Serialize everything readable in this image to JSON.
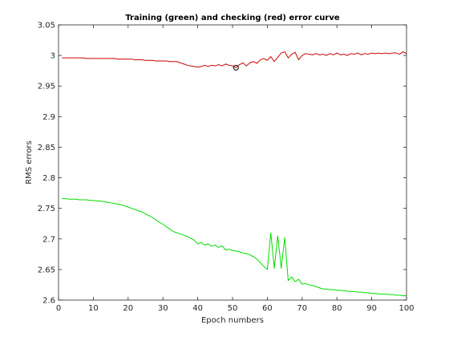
{
  "chart_data": {
    "type": "line",
    "title": "Training (green) and checking (red) error curve",
    "xlabel": "Epoch numbers",
    "ylabel": "RMS errors",
    "xlim": [
      0,
      100
    ],
    "ylim": [
      2.6,
      3.05
    ],
    "xticks": [
      0,
      10,
      20,
      30,
      40,
      50,
      60,
      70,
      80,
      90,
      100
    ],
    "xtick_labels": [
      "0",
      "10",
      "20",
      "30",
      "40",
      "50",
      "60",
      "70",
      "80",
      "90",
      "100"
    ],
    "yticks": [
      2.6,
      2.65,
      2.7,
      2.75,
      2.8,
      2.85,
      2.9,
      2.95,
      3.0,
      3.05
    ],
    "ytick_labels": [
      "2.6",
      "2.65",
      "2.7",
      "2.75",
      "2.8",
      "2.85",
      "2.9",
      "2.95",
      "3",
      "3.05"
    ],
    "grid": false,
    "series": [
      {
        "color": "#00dd00",
        "x": [
          1,
          2,
          3,
          4,
          5,
          6,
          7,
          8,
          9,
          10,
          11,
          12,
          13,
          14,
          15,
          16,
          17,
          18,
          19,
          20,
          21,
          22,
          23,
          24,
          25,
          26,
          27,
          28,
          29,
          30,
          31,
          32,
          33,
          34,
          35,
          36,
          37,
          38,
          39,
          40,
          41,
          42,
          43,
          44,
          45,
          46,
          47,
          48,
          49,
          50,
          51,
          52,
          53,
          54,
          55,
          56,
          57,
          58,
          59,
          60,
          61,
          62,
          63,
          64,
          65,
          66,
          67,
          68,
          69,
          70,
          71,
          72,
          73,
          74,
          75,
          76,
          77,
          78,
          79,
          80,
          81,
          82,
          83,
          84,
          85,
          86,
          87,
          88,
          89,
          90,
          91,
          92,
          93,
          94,
          95,
          96,
          97,
          98,
          99,
          100
        ],
        "y": [
          2.766,
          2.766,
          2.765,
          2.765,
          2.765,
          2.764,
          2.764,
          2.764,
          2.763,
          2.763,
          2.762,
          2.762,
          2.761,
          2.76,
          2.759,
          2.758,
          2.757,
          2.756,
          2.754,
          2.752,
          2.75,
          2.748,
          2.746,
          2.744,
          2.741,
          2.738,
          2.735,
          2.731,
          2.727,
          2.724,
          2.72,
          2.716,
          2.712,
          2.71,
          2.708,
          2.706,
          2.704,
          2.701,
          2.698,
          2.692,
          2.694,
          2.69,
          2.692,
          2.688,
          2.69,
          2.686,
          2.689,
          2.682,
          2.683,
          2.681,
          2.68,
          2.679,
          2.677,
          2.676,
          2.674,
          2.671,
          2.667,
          2.661,
          2.655,
          2.65,
          2.71,
          2.652,
          2.705,
          2.652,
          2.702,
          2.632,
          2.638,
          2.63,
          2.634,
          2.626,
          2.627,
          2.625,
          2.624,
          2.622,
          2.62,
          2.618,
          2.618,
          2.617,
          2.617,
          2.616,
          2.616,
          2.615,
          2.615,
          2.614,
          2.614,
          2.613,
          2.613,
          2.612,
          2.612,
          2.611,
          2.611,
          2.61,
          2.61,
          2.61,
          2.609,
          2.609,
          2.608,
          2.608,
          2.607,
          2.607
        ]
      },
      {
        "color": "#cc0000",
        "x": [
          1,
          2,
          3,
          4,
          5,
          6,
          7,
          8,
          9,
          10,
          11,
          12,
          13,
          14,
          15,
          16,
          17,
          18,
          19,
          20,
          21,
          22,
          23,
          24,
          25,
          26,
          27,
          28,
          29,
          30,
          31,
          32,
          33,
          34,
          35,
          36,
          37,
          38,
          39,
          40,
          41,
          42,
          43,
          44,
          45,
          46,
          47,
          48,
          49,
          50,
          51,
          52,
          53,
          54,
          55,
          56,
          57,
          58,
          59,
          60,
          61,
          62,
          63,
          64,
          65,
          66,
          67,
          68,
          69,
          70,
          71,
          72,
          73,
          74,
          75,
          76,
          77,
          78,
          79,
          80,
          81,
          82,
          83,
          84,
          85,
          86,
          87,
          88,
          89,
          90,
          91,
          92,
          93,
          94,
          95,
          96,
          97,
          98,
          99,
          100
        ],
        "y": [
          2.996,
          2.996,
          2.996,
          2.996,
          2.996,
          2.996,
          2.996,
          2.995,
          2.995,
          2.995,
          2.995,
          2.995,
          2.995,
          2.995,
          2.995,
          2.995,
          2.994,
          2.994,
          2.994,
          2.994,
          2.994,
          2.993,
          2.993,
          2.993,
          2.992,
          2.992,
          2.992,
          2.991,
          2.991,
          2.991,
          2.991,
          2.99,
          2.99,
          2.99,
          2.988,
          2.986,
          2.984,
          2.983,
          2.982,
          2.981,
          2.982,
          2.984,
          2.982,
          2.984,
          2.983,
          2.985,
          2.983,
          2.986,
          2.984,
          2.983,
          2.98,
          2.985,
          2.988,
          2.983,
          2.988,
          2.99,
          2.987,
          2.993,
          2.995,
          2.992,
          2.998,
          2.99,
          2.997,
          3.004,
          3.006,
          2.996,
          3.002,
          3.005,
          2.993,
          3.0,
          3.003,
          3.002,
          3.001,
          3.003,
          3.001,
          3.002,
          3.0,
          3.003,
          3.001,
          3.004,
          3.001,
          3.002,
          3.0,
          3.003,
          3.002,
          3.004,
          3.001,
          3.003,
          3.002,
          3.004,
          3.003,
          3.004,
          3.003,
          3.004,
          3.003,
          3.004,
          3.004,
          3.002,
          3.006,
          3.003
        ]
      }
    ],
    "marker": {
      "x": 51,
      "y": 2.98,
      "color": "#000000",
      "shape": "circle"
    }
  }
}
